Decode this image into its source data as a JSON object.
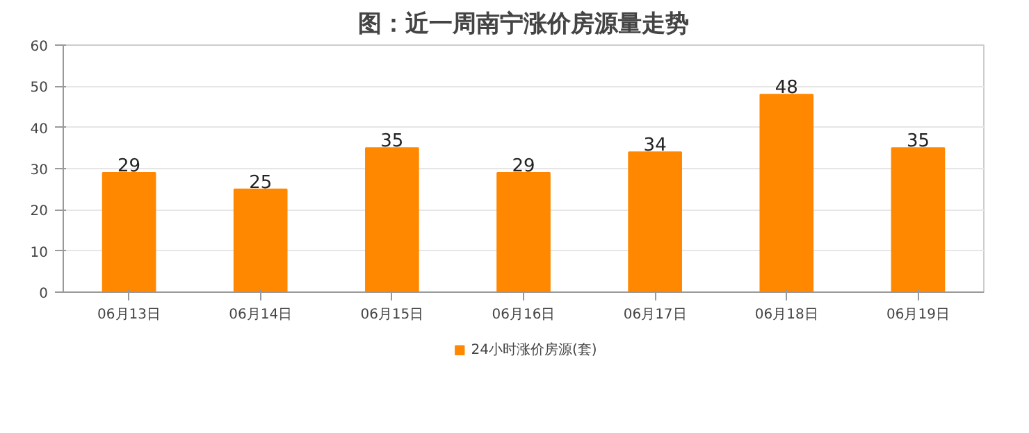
{
  "chart_data": {
    "type": "bar",
    "title": "图：近一周南宁涨价房源量走势",
    "categories": [
      "06月13日",
      "06月14日",
      "06月15日",
      "06月16日",
      "06月17日",
      "06月18日",
      "06月19日"
    ],
    "series": [
      {
        "name": "24小时涨价房源(套)",
        "color": "#ff8800",
        "values": [
          29,
          25,
          35,
          29,
          34,
          48,
          35
        ]
      }
    ],
    "ylim": [
      0,
      60
    ],
    "yticks": [
      0,
      10,
      20,
      30,
      40,
      50,
      60
    ],
    "grid": "y",
    "legend": "bottom",
    "data_labels": true
  }
}
